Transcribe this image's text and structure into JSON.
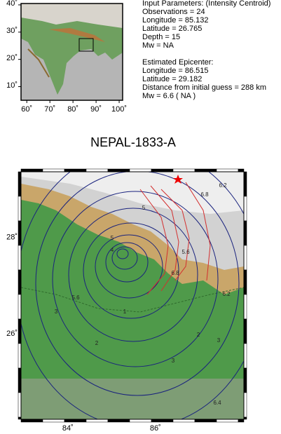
{
  "inset_map": {
    "xlim": [
      57.5,
      101.5
    ],
    "ylim": [
      5,
      40.5
    ],
    "xticks": [
      {
        "value": 60,
        "label": "60˚"
      },
      {
        "value": 70,
        "label": "70˚"
      },
      {
        "value": 80,
        "label": "80˚"
      },
      {
        "value": 90,
        "label": "90˚"
      },
      {
        "value": 100,
        "label": "100˚"
      }
    ],
    "yticks": [
      {
        "value": 10,
        "label": "10˚"
      },
      {
        "value": 20,
        "label": "20˚"
      },
      {
        "value": 30,
        "label": "30˚"
      },
      {
        "value": 40,
        "label": "40˚"
      }
    ]
  },
  "input_parameters": {
    "heading": "Input Parameters: (Intensity Centroid)",
    "lines": [
      "Observations = 24",
      "Longitude = 85.132",
      "Latitude = 26.765",
      "Depth = 15",
      "Mw = NA"
    ]
  },
  "estimated_epicenter": {
    "heading": "Estimated Epicenter:",
    "lines": [
      "Longitude = 86.515",
      "Latitude = 29.182",
      "Distance from initial guess = 288 km",
      "Mw = 6.6 ( NA )"
    ]
  },
  "title": "NEPAL-1833-A",
  "main_map": {
    "xlim": [
      82.93,
      88.02
    ],
    "ylim": [
      24.26,
      29.38
    ],
    "xticks": [
      {
        "value": 84,
        "label": "84˚"
      },
      {
        "value": 86,
        "label": "86˚"
      }
    ],
    "yticks": [
      {
        "value": 26,
        "label": "26˚"
      },
      {
        "value": 28,
        "label": "28˚"
      }
    ],
    "contour_labels": [
      "1",
      "2",
      "2",
      "3",
      "3",
      "3",
      "4",
      "5",
      "5",
      "5.6",
      "5.6",
      "6.2",
      "6.2",
      "6.4",
      "6.8",
      "6.8"
    ]
  }
}
